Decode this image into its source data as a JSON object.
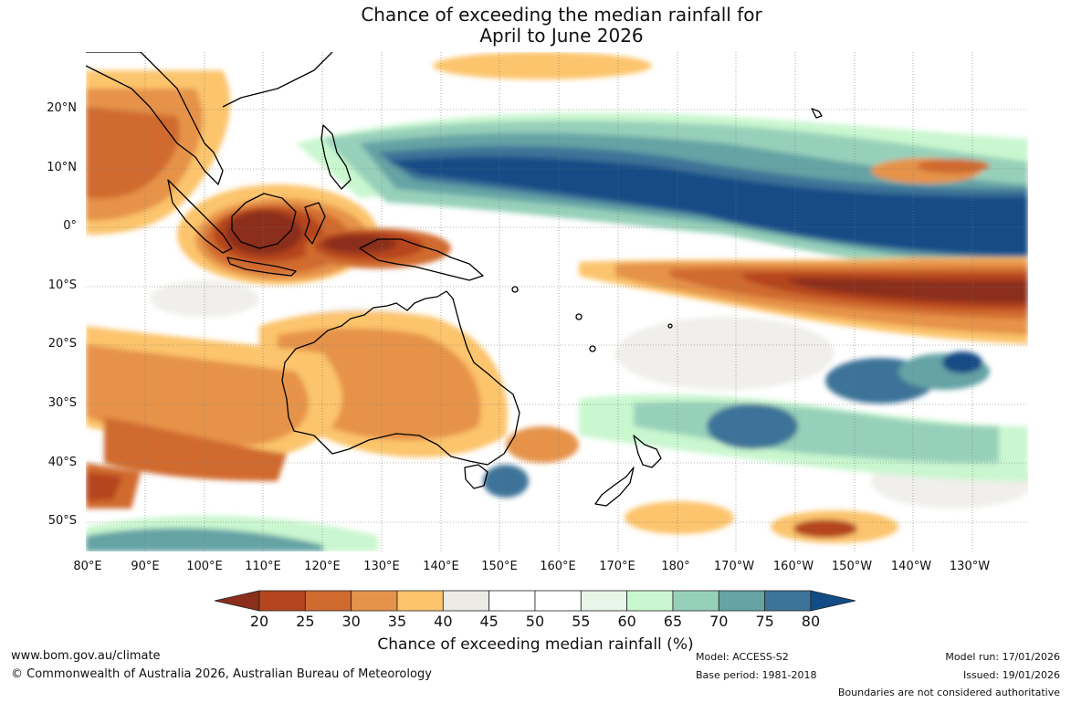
{
  "title": {
    "line1": "Chance of exceeding the median rainfall for",
    "line2": "April to June 2026"
  },
  "map": {
    "latitude_labels": [
      "20°N",
      "10°N",
      "0°",
      "10°S",
      "20°S",
      "30°S",
      "40°S",
      "50°S"
    ],
    "longitude_labels": [
      "80°E",
      "90°E",
      "100°E",
      "110°E",
      "120°E",
      "130°E",
      "140°E",
      "150°E",
      "160°E",
      "170°E",
      "180°",
      "170°W",
      "160°W",
      "150°W",
      "140°W",
      "130°W"
    ],
    "regions": {
      "equatorial_pacific_wet": "above median (75-80%)",
      "south_pacific_dry": "below median (20-30%)",
      "maritime_continent_dry": "below median (20-30%)",
      "australia": "below median (30-40%)"
    }
  },
  "colorbar": {
    "ticks": [
      "20",
      "25",
      "30",
      "35",
      "40",
      "45",
      "50",
      "55",
      "60",
      "65",
      "70",
      "75",
      "80"
    ],
    "colors": [
      "#8b2e1c",
      "#b5451f",
      "#d06a2e",
      "#e6934a",
      "#fcc46c",
      "#ecebe6",
      "#ffffff",
      "#ffffff",
      "#e7f6e8",
      "#c9f7cf",
      "#97d0ba",
      "#65a3a5",
      "#3c7398",
      "#124c86"
    ],
    "title": "Chance of exceeding median rainfall (%)"
  },
  "footer": {
    "website": "www.bom.gov.au/climate",
    "copyright": "© Commonwealth of Australia 2026, Australian Bureau of Meteorology",
    "model": "Model: ACCESS-S2",
    "base_period": "Base period: 1981-2018",
    "model_run": "Model run: 17/01/2026",
    "issued": "Issued: 19/01/2026",
    "disclaimer": "Boundaries are not considered authoritative"
  }
}
